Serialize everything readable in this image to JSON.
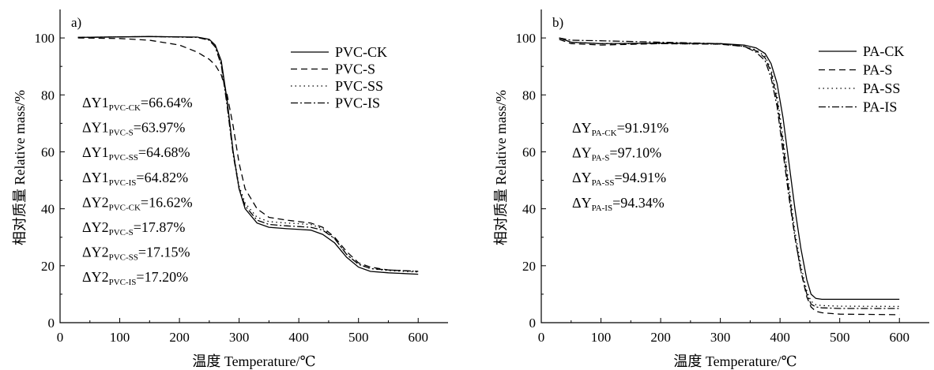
{
  "chart_data": [
    {
      "type": "line",
      "panel": "a)",
      "xlabel": "温度 Temperature/℃",
      "ylabel": "相对质量 Relative mass/%",
      "xlim": [
        0,
        650
      ],
      "ylim": [
        0,
        110
      ],
      "xticks": [
        "0",
        "100",
        "200",
        "300",
        "400",
        "500",
        "600"
      ],
      "yticks": [
        "0",
        "20",
        "40",
        "60",
        "80",
        "100"
      ],
      "legend_position": "top-right",
      "series": [
        {
          "name": "PVC-CK",
          "dash": "solid",
          "x": [
            30,
            150,
            230,
            250,
            260,
            270,
            280,
            290,
            300,
            310,
            330,
            350,
            380,
            420,
            440,
            460,
            480,
            500,
            520,
            550,
            600
          ],
          "y": [
            100.2,
            100.5,
            100.3,
            99.5,
            97.5,
            92,
            78,
            60,
            47,
            40,
            35,
            33.5,
            33,
            32.5,
            31,
            28,
            23,
            19.5,
            18,
            17.5,
            17
          ]
        },
        {
          "name": "PVC-S",
          "dash": "8 5",
          "x": [
            30,
            100,
            150,
            200,
            230,
            250,
            260,
            270,
            280,
            290,
            300,
            310,
            330,
            350,
            380,
            420,
            440,
            460,
            480,
            500,
            520,
            550,
            600
          ],
          "y": [
            100,
            99.8,
            99.2,
            97.5,
            95,
            92.5,
            90.5,
            87,
            80,
            69,
            56,
            47,
            40,
            37,
            36,
            35,
            33.5,
            30,
            25,
            21,
            19.5,
            18.5,
            18
          ]
        },
        {
          "name": "PVC-SS",
          "dash": "1.5 4",
          "x": [
            30,
            150,
            230,
            250,
            260,
            270,
            280,
            290,
            300,
            310,
            330,
            350,
            380,
            420,
            440,
            460,
            480,
            500,
            520,
            550,
            600
          ],
          "y": [
            100.2,
            100.5,
            100.2,
            99.3,
            97,
            91,
            77,
            60,
            48,
            42,
            37,
            35.5,
            35,
            34.5,
            33,
            29.5,
            24,
            20.5,
            19,
            18.3,
            17.8
          ]
        },
        {
          "name": "PVC-IS",
          "dash": "9 3 2 3",
          "x": [
            30,
            150,
            230,
            250,
            260,
            270,
            280,
            290,
            300,
            310,
            330,
            350,
            380,
            420,
            440,
            460,
            480,
            500,
            520,
            550,
            600
          ],
          "y": [
            100.2,
            100.5,
            100.2,
            99.2,
            96.8,
            90.5,
            76,
            59,
            47,
            41,
            36,
            34.5,
            34,
            33.5,
            32.5,
            29.5,
            24,
            20.5,
            19,
            18.5,
            18
          ]
        }
      ],
      "annotations": [
        {
          "main": "ΔY1",
          "sub": "PVC-CK",
          "value": "=66.64%"
        },
        {
          "main": "ΔY1",
          "sub": "PVC-S",
          "value": "=63.97%"
        },
        {
          "main": "ΔY1",
          "sub": "PVC-SS",
          "value": "=64.68%"
        },
        {
          "main": "ΔY1",
          "sub": "PVC-IS",
          "value": "=64.82%"
        },
        {
          "main": "ΔY2",
          "sub": "PVC-CK",
          "value": "=16.62%"
        },
        {
          "main": "ΔY2",
          "sub": "PVC-S",
          "value": "=17.87%"
        },
        {
          "main": "ΔY2",
          "sub": "PVC-SS",
          "value": "=17.15%"
        },
        {
          "main": "ΔY2",
          "sub": "PVC-IS",
          "value": "=17.20%"
        }
      ]
    },
    {
      "type": "line",
      "panel": "b)",
      "xlabel": "温度 Temperature/℃",
      "ylabel": "相对质量 Relative mass/%",
      "xlim": [
        0,
        650
      ],
      "ylim": [
        0,
        110
      ],
      "xticks": [
        "0",
        "100",
        "200",
        "300",
        "400",
        "500",
        "600"
      ],
      "yticks": [
        "0",
        "20",
        "40",
        "60",
        "80",
        "100"
      ],
      "legend_position": "top-right",
      "series": [
        {
          "name": "PA-CK",
          "dash": "solid",
          "x": [
            30,
            50,
            100,
            200,
            300,
            340,
            360,
            375,
            385,
            395,
            405,
            415,
            425,
            435,
            445,
            452,
            460,
            470,
            500,
            600
          ],
          "y": [
            100,
            98.5,
            98,
            98.2,
            98,
            97.5,
            96.5,
            94.5,
            91,
            84,
            72,
            56,
            40,
            26,
            15,
            10,
            8.5,
            8.2,
            8.2,
            8.2
          ]
        },
        {
          "name": "PA-S",
          "dash": "8 5",
          "x": [
            30,
            50,
            100,
            200,
            300,
            340,
            360,
            375,
            385,
            395,
            405,
            415,
            425,
            435,
            445,
            452,
            460,
            470,
            500,
            600
          ],
          "y": [
            99.5,
            98,
            97.5,
            98,
            97.8,
            97,
            95.5,
            93,
            88,
            78,
            63,
            46,
            30,
            18,
            9,
            5.5,
            4,
            3.5,
            3,
            2.8
          ]
        },
        {
          "name": "PA-SS",
          "dash": "1.5 4",
          "x": [
            30,
            50,
            100,
            200,
            300,
            340,
            360,
            375,
            385,
            395,
            405,
            415,
            425,
            435,
            445,
            452,
            460,
            470,
            500,
            600
          ],
          "y": [
            100,
            98.5,
            98,
            98,
            97.8,
            97,
            95.8,
            93.5,
            89,
            80,
            65,
            48,
            32,
            20,
            11,
            7.5,
            6.3,
            6,
            5.8,
            5.7
          ]
        },
        {
          "name": "PA-IS",
          "dash": "9 3 2 3",
          "x": [
            30,
            50,
            100,
            200,
            300,
            340,
            360,
            375,
            385,
            395,
            405,
            415,
            425,
            435,
            445,
            452,
            460,
            470,
            500,
            600
          ],
          "y": [
            100,
            99.2,
            99,
            98.5,
            98,
            97,
            95,
            92,
            86,
            76,
            60,
            44,
            30,
            18,
            10,
            6.5,
            5.5,
            5.2,
            5,
            5
          ]
        }
      ],
      "annotations": [
        {
          "main": "ΔY",
          "sub": "PA-CK",
          "value": "=91.91%"
        },
        {
          "main": "ΔY",
          "sub": "PA-S",
          "value": "=97.10%"
        },
        {
          "main": "ΔY",
          "sub": "PA-SS",
          "value": "=94.91%"
        },
        {
          "main": "ΔY",
          "sub": "PA-IS",
          "value": "=94.34%"
        }
      ]
    }
  ]
}
